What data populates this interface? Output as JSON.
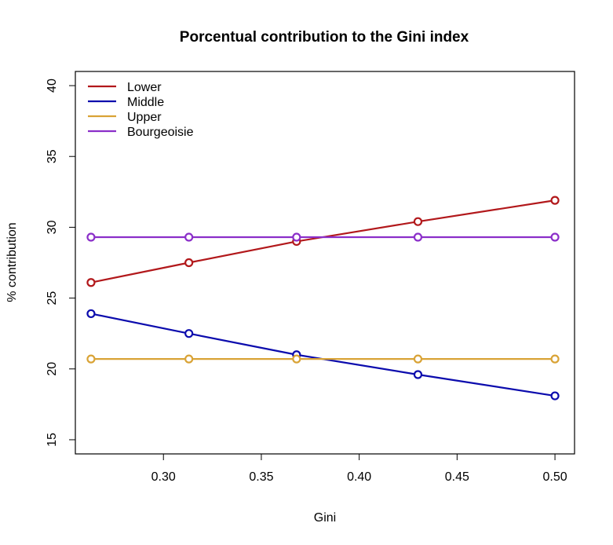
{
  "chart_data": {
    "type": "line",
    "title": "Porcentual contribution to the Gini index",
    "xlabel": "Gini",
    "ylabel": "% contribution",
    "x": [
      0.263,
      0.313,
      0.368,
      0.43,
      0.5
    ],
    "xlim": [
      0.255,
      0.51
    ],
    "ylim": [
      14,
      41
    ],
    "xticks": [
      0.3,
      0.35,
      0.4,
      0.45,
      0.5
    ],
    "xtick_labels": [
      "0.30",
      "0.35",
      "0.40",
      "0.45",
      "0.50"
    ],
    "yticks": [
      15,
      20,
      25,
      30,
      35,
      40
    ],
    "ytick_labels": [
      "15",
      "20",
      "25",
      "30",
      "35",
      "40"
    ],
    "legend_position": "top-left",
    "series": [
      {
        "name": "Lower",
        "color": "#b2181b",
        "values": [
          26.1,
          27.5,
          29.0,
          30.4,
          31.9
        ]
      },
      {
        "name": "Middle",
        "color": "#0b0bad",
        "values": [
          23.9,
          22.5,
          21.0,
          19.6,
          18.1
        ]
      },
      {
        "name": "Upper",
        "color": "#d9a336",
        "values": [
          20.7,
          20.7,
          20.7,
          20.7,
          20.7
        ]
      },
      {
        "name": "Bourgeoisie",
        "color": "#8b2fc9",
        "values": [
          29.3,
          29.3,
          29.3,
          29.3,
          29.3
        ]
      }
    ]
  }
}
